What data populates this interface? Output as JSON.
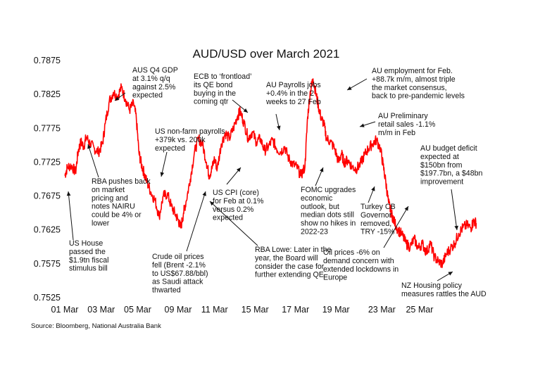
{
  "chart_data": {
    "type": "line",
    "title": "AUD/USD over March 2021",
    "source": "Source: Bloomberg, National Australia Bank",
    "xlabel": "",
    "ylabel": "",
    "ylim": [
      0.7525,
      0.7875
    ],
    "xlim": [
      0,
      31
    ],
    "y_ticks": [
      "0.7875",
      "0.7825",
      "0.7775",
      "0.7725",
      "0.7675",
      "0.7625",
      "0.7575",
      "0.7525"
    ],
    "y_tick_values": [
      0.7875,
      0.7825,
      0.7775,
      0.7725,
      0.7675,
      0.7625,
      0.7575,
      0.7525
    ],
    "x_tick_labels": [
      "01 Mar",
      "03 Mar",
      "05 Mar",
      "09 Mar",
      "11 Mar",
      "15 Mar",
      "17 Mar",
      "19 Mar",
      "23 Mar",
      "25 Mar"
    ],
    "x_tick_positions": [
      0,
      2.7,
      5.4,
      8.4,
      11.1,
      14.1,
      17.1,
      20.1,
      23.5,
      26.3
    ],
    "grid": false,
    "line_color": "#ff0000",
    "series": [
      {
        "x": [
          0,
          0.2,
          0.5,
          0.8,
          1.0,
          1.2,
          1.4,
          1.6,
          1.9,
          2.2,
          2.5,
          2.8,
          3.0,
          3.3,
          3.6,
          3.9,
          4.2,
          4.5,
          4.8,
          5.1,
          5.3,
          5.5,
          5.7,
          5.9,
          6.1,
          6.4,
          6.7,
          7.0,
          7.3,
          7.6,
          7.9,
          8.2,
          8.4,
          8.6,
          8.8,
          9.0,
          9.3,
          9.6,
          9.9,
          10.2,
          10.5,
          10.7,
          10.9,
          11.1,
          11.3,
          11.6,
          11.9,
          12.2,
          12.5,
          12.8,
          13.0,
          13.3,
          13.6,
          13.9,
          14.2,
          14.5,
          14.8,
          15.1,
          15.4,
          15.7,
          16.0,
          16.3,
          16.6,
          16.9,
          17.2,
          17.5,
          17.8,
          18.0,
          18.2,
          18.4,
          18.6,
          18.8,
          19.0,
          19.2,
          19.4,
          19.7,
          20.0,
          20.3,
          20.5,
          20.7,
          21.0,
          21.3,
          21.6,
          21.9,
          22.2,
          22.5,
          22.8,
          23.1,
          23.4,
          23.6,
          23.8,
          24.0,
          24.2,
          24.4,
          24.7,
          25.0,
          25.3,
          25.6,
          25.9,
          26.2,
          26.5,
          26.8,
          27.1,
          27.4,
          27.7,
          28.0,
          28.3,
          28.6,
          28.9,
          29.2,
          29.5,
          29.8,
          30.1,
          30.3,
          30.5
        ],
        "values": [
          0.7705,
          0.7718,
          0.772,
          0.771,
          0.7742,
          0.7755,
          0.7748,
          0.7762,
          0.7752,
          0.7745,
          0.774,
          0.7752,
          0.7782,
          0.7815,
          0.7828,
          0.7822,
          0.7835,
          0.7818,
          0.7802,
          0.7812,
          0.779,
          0.7738,
          0.772,
          0.7708,
          0.7695,
          0.768,
          0.7668,
          0.7645,
          0.7675,
          0.7678,
          0.766,
          0.7648,
          0.764,
          0.7628,
          0.765,
          0.7668,
          0.77,
          0.7738,
          0.776,
          0.7752,
          0.7725,
          0.7705,
          0.7715,
          0.773,
          0.7715,
          0.7752,
          0.7768,
          0.776,
          0.7775,
          0.7793,
          0.78,
          0.7782,
          0.776,
          0.777,
          0.7755,
          0.776,
          0.7742,
          0.7748,
          0.7758,
          0.7745,
          0.774,
          0.7748,
          0.773,
          0.7722,
          0.7718,
          0.7705,
          0.7718,
          0.7792,
          0.783,
          0.7848,
          0.7828,
          0.7808,
          0.779,
          0.7782,
          0.776,
          0.7755,
          0.7745,
          0.7725,
          0.7738,
          0.7725,
          0.7728,
          0.7718,
          0.7715,
          0.7722,
          0.7735,
          0.7745,
          0.7752,
          0.7758,
          0.7745,
          0.772,
          0.7695,
          0.7665,
          0.765,
          0.7638,
          0.7625,
          0.7618,
          0.7605,
          0.76,
          0.7612,
          0.7598,
          0.7605,
          0.7592,
          0.7605,
          0.7585,
          0.7578,
          0.7575,
          0.759,
          0.7598,
          0.7605,
          0.762,
          0.7628,
          0.7632,
          0.7628,
          0.7638,
          0.7635
        ]
      }
    ],
    "annotations": [
      {
        "id": "us-house",
        "lines": [
          "US House",
          "passed the",
          "$1.9tn fiscal",
          "stimulus bill"
        ]
      },
      {
        "id": "rba-pushes",
        "lines": [
          "RBA pushes back",
          "on market",
          "pricing and",
          "notes NAIRU",
          "could be 4% or",
          "lower"
        ]
      },
      {
        "id": "aus-gdp",
        "lines": [
          "AUS Q4 GDP",
          "at 3.1% q/q",
          "against 2.5%",
          "expected"
        ]
      },
      {
        "id": "crude-oil",
        "lines": [
          "Crude oil prices",
          "fell (Brent -2.1%",
          "to US$67.88/bbl)",
          "as Saudi attack",
          "thwarted"
        ]
      },
      {
        "id": "us-nfp",
        "lines": [
          "US non-farm payrolls",
          "+379k vs. 200k",
          "expected"
        ]
      },
      {
        "id": "ecb",
        "lines": [
          "ECB to ‘frontload’",
          "its QE bond",
          "buying in the",
          "coming qtr"
        ]
      },
      {
        "id": "us-cpi",
        "lines": [
          "US CPI (core)",
          "for Feb at 0.1%",
          "versus 0.2%",
          "expected"
        ]
      },
      {
        "id": "rba-lowe",
        "lines": [
          "RBA Lowe:  Later in the",
          "year, the Board will",
          "consider the case for",
          "further extending QE"
        ]
      },
      {
        "id": "au-payrolls",
        "lines": [
          "AU Payrolls jobs",
          "+0.4% in the 2",
          "weeks to 27 Feb"
        ]
      },
      {
        "id": "fomc",
        "lines": [
          "FOMC upgrades",
          "economic",
          "outlook, but",
          "median dots still",
          "show no hikes in",
          "2022-23"
        ]
      },
      {
        "id": "au-employment",
        "lines": [
          "AU employment for Feb.",
          "+88.7k m/m, almost triple",
          "the market consensus,",
          "back to pre-pandemic levels"
        ]
      },
      {
        "id": "au-retail",
        "lines": [
          "AU Preliminary",
          "retail sales -1.1%",
          "m/m in Feb"
        ]
      },
      {
        "id": "turkey",
        "lines": [
          "Turkey CB",
          "Governor",
          "removed,",
          "TRY -15%"
        ]
      },
      {
        "id": "oil-prices",
        "lines": [
          "Oil prices -6% on",
          "demand concern with",
          "extended lockdowns in",
          "Europe"
        ]
      },
      {
        "id": "nz-housing",
        "lines": [
          "NZ Housing policy",
          "measures rattles the AUD"
        ]
      },
      {
        "id": "au-budget",
        "lines": [
          "AU budget deficit",
          "expected at",
          "$150bn from",
          "$197.7bn, a $48bn",
          "improvement"
        ]
      }
    ]
  }
}
